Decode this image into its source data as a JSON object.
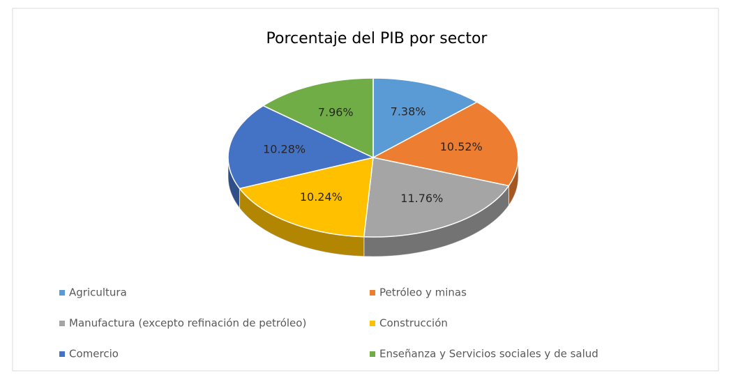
{
  "chart_data": {
    "type": "pie",
    "title": "Porcentaje del PIB por sector",
    "categories": [
      "Agricultura",
      "Petróleo y minas",
      "Manufactura (excepto refinación de petróleo)",
      "Construcción",
      "Comercio",
      "Enseñanza y Servicios sociales y de salud"
    ],
    "values": [
      7.38,
      10.52,
      11.76,
      10.24,
      10.28,
      7.96
    ],
    "value_labels": [
      "7.38%",
      "10.52%",
      "11.76%",
      "10.24%",
      "10.28%",
      "7.96%"
    ],
    "colors": [
      "#5b9bd5",
      "#ed7d31",
      "#a5a5a5",
      "#ffc000",
      "#4472c4",
      "#70ad47"
    ],
    "legend": "bottom",
    "three_d": true
  }
}
